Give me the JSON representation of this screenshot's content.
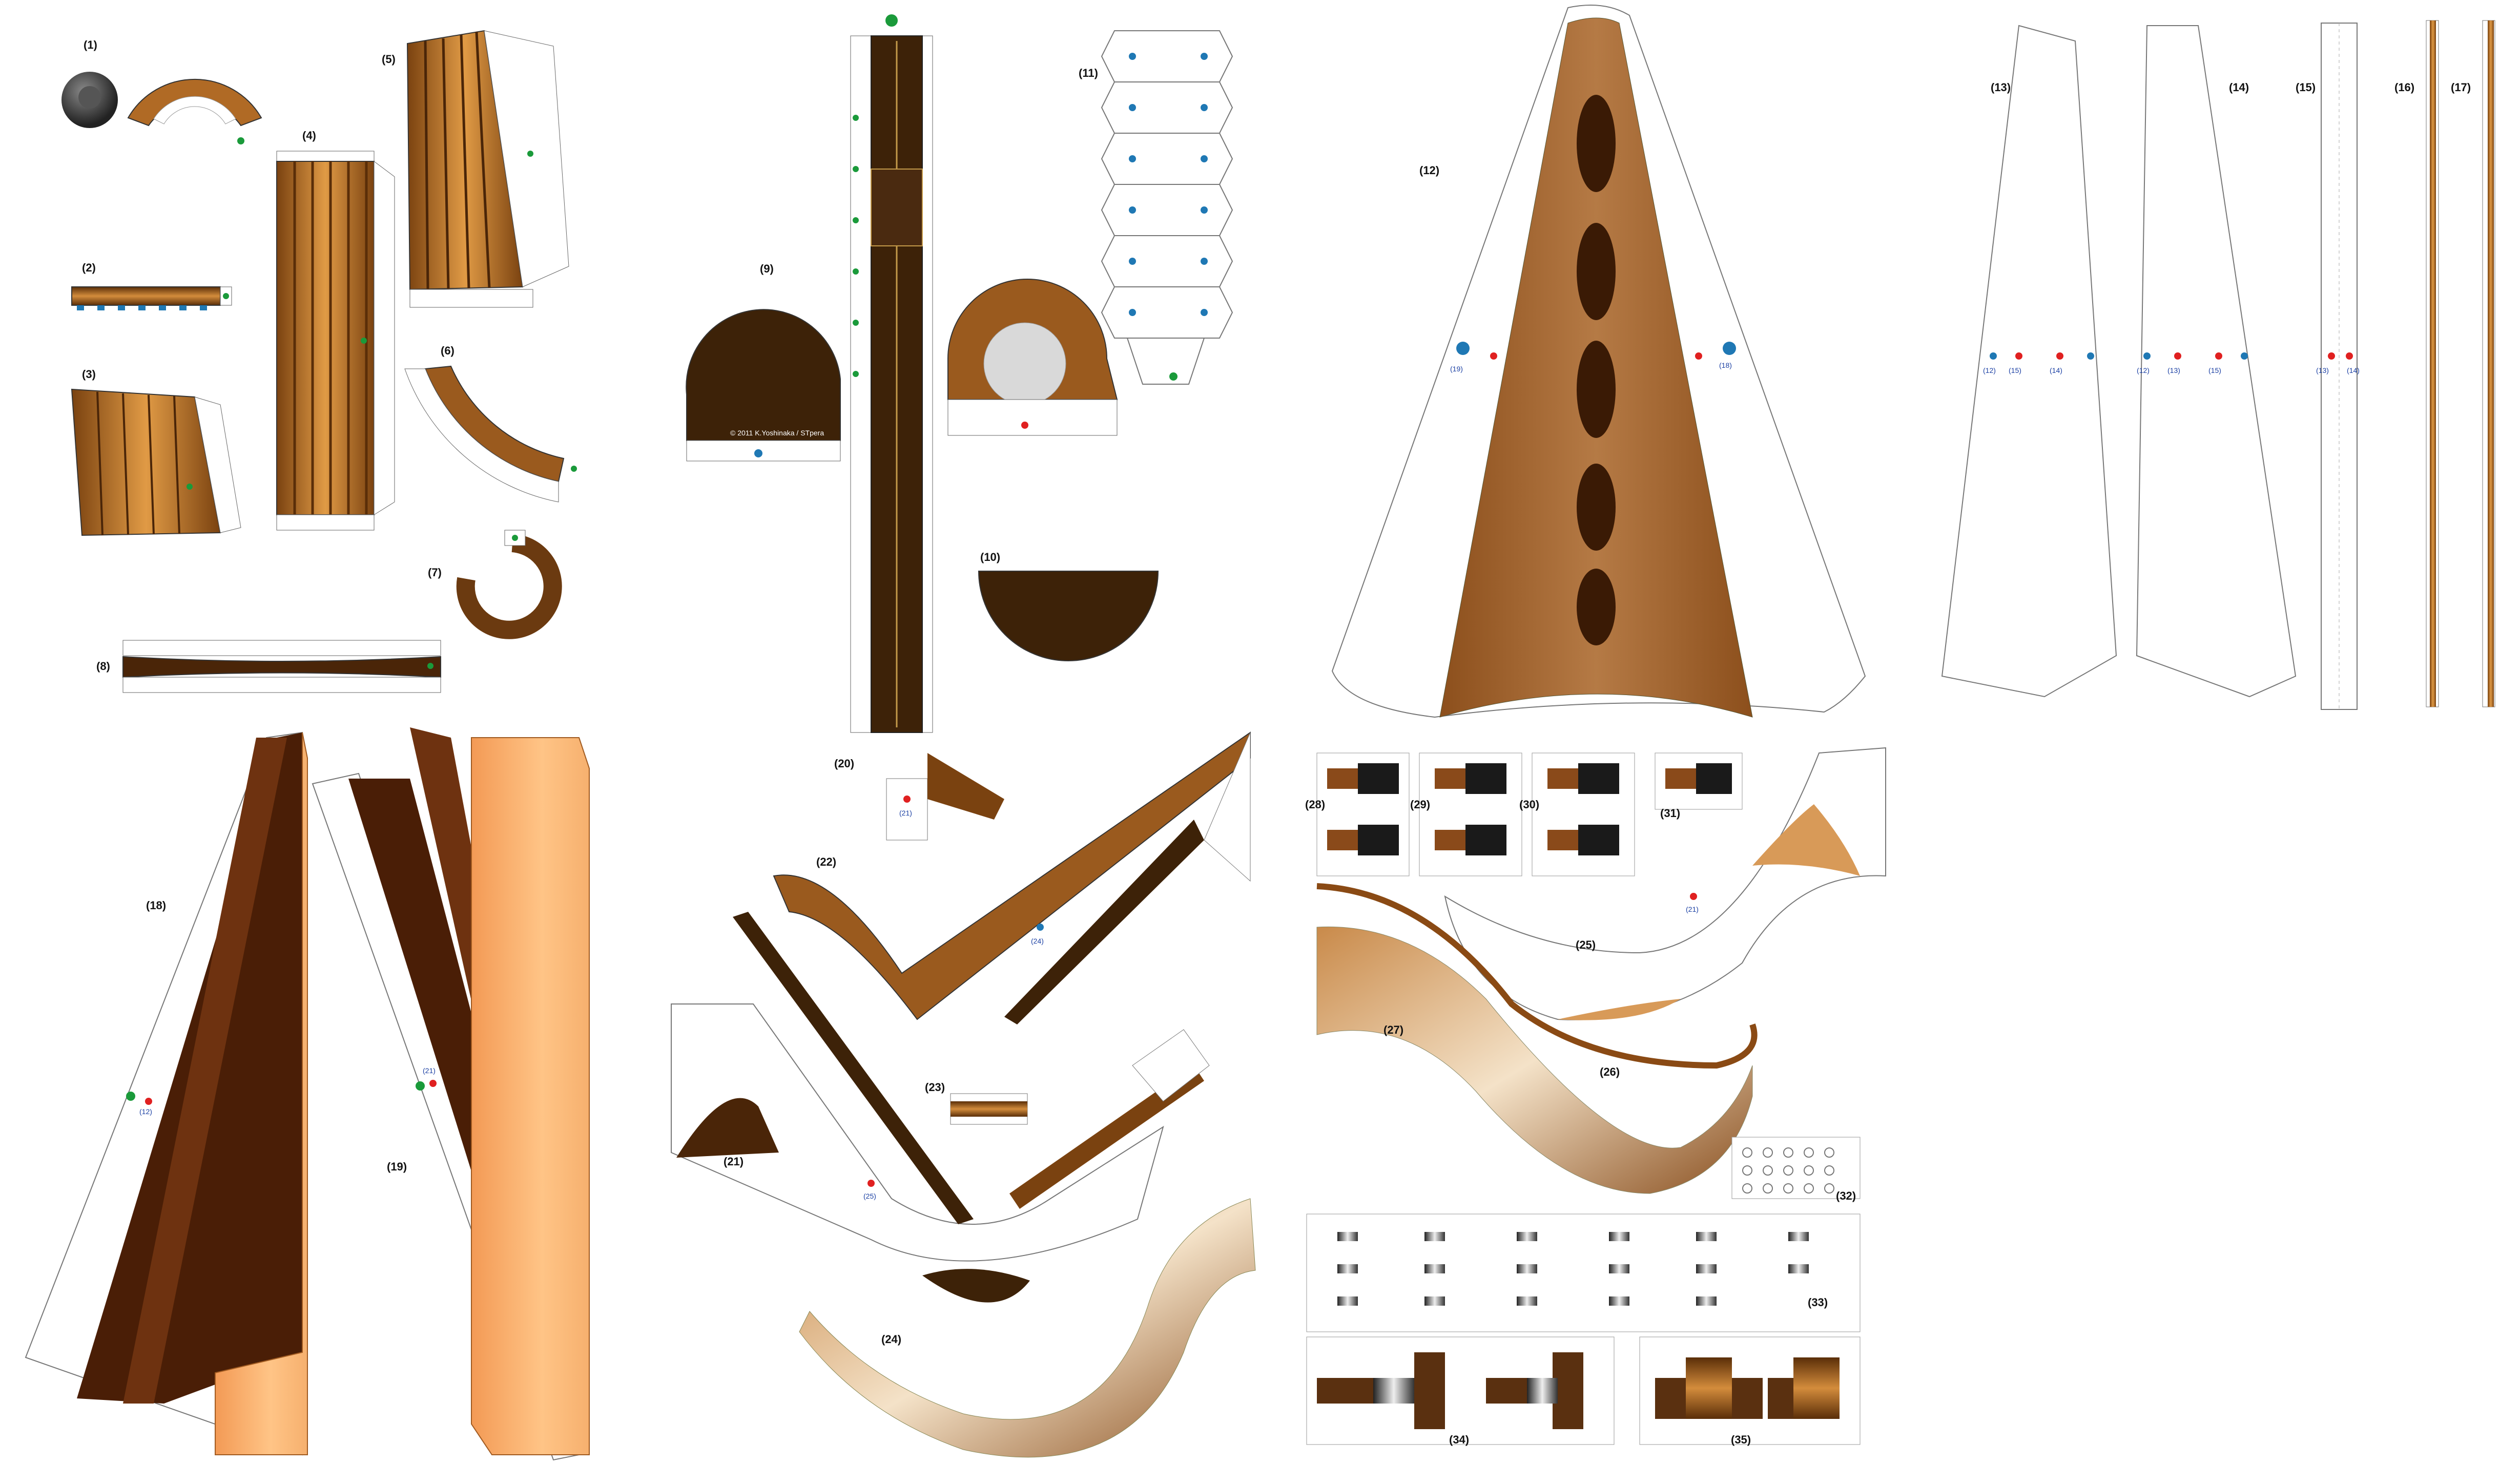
{
  "copyright": "© 2011 K.Yoshinaka / STpera",
  "parts": [
    {
      "key": "p1",
      "label": "(1)"
    },
    {
      "key": "p2",
      "label": "(2)"
    },
    {
      "key": "p3",
      "label": "(3)"
    },
    {
      "key": "p4",
      "label": "(4)"
    },
    {
      "key": "p5",
      "label": "(5)"
    },
    {
      "key": "p6",
      "label": "(6)"
    },
    {
      "key": "p7",
      "label": "(7)"
    },
    {
      "key": "p8",
      "label": "(8)"
    },
    {
      "key": "p9",
      "label": "(9)"
    },
    {
      "key": "p10",
      "label": "(10)"
    },
    {
      "key": "p11",
      "label": "(11)"
    },
    {
      "key": "p12",
      "label": "(12)"
    },
    {
      "key": "p13",
      "label": "(13)"
    },
    {
      "key": "p14",
      "label": "(14)"
    },
    {
      "key": "p15",
      "label": "(15)"
    },
    {
      "key": "p16",
      "label": "(16)"
    },
    {
      "key": "p17",
      "label": "(17)"
    },
    {
      "key": "p18",
      "label": "(18)"
    },
    {
      "key": "p19",
      "label": "(19)"
    },
    {
      "key": "p20",
      "label": "(20)"
    },
    {
      "key": "p21",
      "label": "(21)"
    },
    {
      "key": "p22",
      "label": "(22)"
    },
    {
      "key": "p23",
      "label": "(23)"
    },
    {
      "key": "p24",
      "label": "(24)"
    },
    {
      "key": "p25",
      "label": "(25)"
    },
    {
      "key": "p26",
      "label": "(26)"
    },
    {
      "key": "p27",
      "label": "(27)"
    },
    {
      "key": "p28",
      "label": "(28)"
    },
    {
      "key": "p29",
      "label": "(29)"
    },
    {
      "key": "p30",
      "label": "(30)"
    },
    {
      "key": "p31",
      "label": "(31)"
    },
    {
      "key": "p32",
      "label": "(32)"
    },
    {
      "key": "p33",
      "label": "(33)"
    },
    {
      "key": "p34",
      "label": "(34)"
    },
    {
      "key": "p35",
      "label": "(35)"
    }
  ],
  "refs": {
    "r12": "(12)",
    "r13": "(13)",
    "r14": "(14)",
    "r15": "(15)",
    "r16": "(16)",
    "r18": "(18)",
    "r19": "(19)",
    "r21": "(21)",
    "r24": "(24)",
    "r25": "(25)"
  },
  "colors": {
    "wood_dark": "#3d2208",
    "wood_mid": "#9a5a1e",
    "wood_light": "#e7a35c",
    "maple": "#f6b06e",
    "marker_green": "#1a9a3a",
    "marker_red": "#e02020",
    "marker_blue": "#1f78b4"
  }
}
